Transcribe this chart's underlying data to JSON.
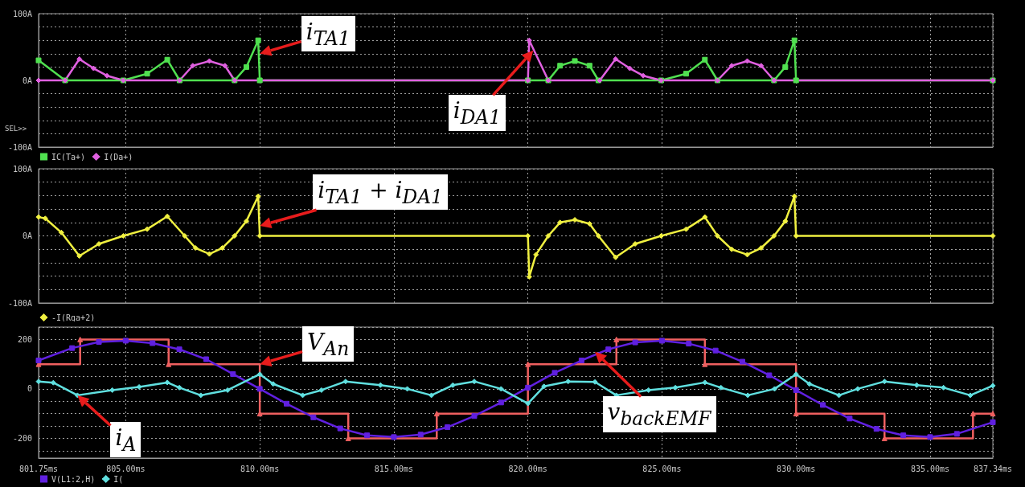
{
  "chart_data": [
    {
      "type": "line",
      "xlim": [
        801.75,
        837.34
      ],
      "ylim": [
        -100,
        100
      ],
      "xticks": [
        {
          "value": 801.75,
          "label": null
        },
        {
          "value": 805,
          "label": null
        },
        {
          "value": 810,
          "label": null
        },
        {
          "value": 815,
          "label": null
        },
        {
          "value": 820,
          "label": null
        },
        {
          "value": 825,
          "label": null
        },
        {
          "value": 830,
          "label": null
        },
        {
          "value": 835,
          "label": null
        },
        {
          "value": 837.34,
          "label": null
        }
      ],
      "yticks": [
        {
          "value": -100,
          "label": "-100A"
        },
        {
          "value": -80,
          "label": null
        },
        {
          "value": -60,
          "label": null
        },
        {
          "value": -40,
          "label": null
        },
        {
          "value": -20,
          "label": null
        },
        {
          "value": 0,
          "label": "0A"
        },
        {
          "value": 20,
          "label": null
        },
        {
          "value": 40,
          "label": null
        },
        {
          "value": 60,
          "label": null
        },
        {
          "value": 80,
          "label": null
        },
        {
          "value": 100,
          "label": "100A"
        }
      ],
      "tick_labels": "y",
      "grid": true,
      "legend": "bottom left",
      "series": [
        {
          "name": "IC(Ta+)",
          "color": "#50e050",
          "marker": "square",
          "x": [
            801.75,
            802.74,
            804.91,
            805.8,
            806.55,
            807.01,
            809.06,
            809.5,
            809.94,
            810.0,
            820.0,
            820.76,
            821.2,
            821.75,
            822.3,
            822.63,
            824.97,
            825.9,
            826.6,
            827.07,
            829.18,
            829.6,
            829.94,
            830.0,
            837.34
          ],
          "values": [
            30,
            0,
            0,
            10,
            31,
            0,
            0,
            20,
            60,
            0,
            0,
            0,
            22,
            29,
            22,
            0,
            0,
            10,
            31,
            0,
            0,
            20,
            60,
            0,
            0
          ]
        },
        {
          "name": "I(Da+)",
          "color": "#e060e0",
          "marker": "diamond",
          "x": [
            801.75,
            802.74,
            803.27,
            803.8,
            804.3,
            804.91,
            807.01,
            807.5,
            808.12,
            808.7,
            809.06,
            820.0,
            820.05,
            820.76,
            822.68,
            823.27,
            823.8,
            824.3,
            824.97,
            827.07,
            827.6,
            828.18,
            828.7,
            829.18,
            837.34
          ],
          "values": [
            0,
            0,
            32,
            18,
            7,
            0,
            0,
            22,
            29,
            22,
            0,
            0,
            60,
            0,
            0,
            32,
            18,
            7,
            0,
            0,
            22,
            29,
            22,
            0,
            0
          ]
        }
      ],
      "annotations": [
        {
          "text": "i$_{TA1}$",
          "x": 810,
          "y": 40
        },
        {
          "text": "i$_{DA1}$",
          "x": 820.2,
          "y": 45
        },
        "SEL>>"
      ]
    },
    {
      "type": "line",
      "xlim": [
        801.75,
        837.34
      ],
      "ylim": [
        -100,
        100
      ],
      "xticks": [
        {
          "value": 801.75,
          "label": null
        },
        {
          "value": 805,
          "label": null
        },
        {
          "value": 810,
          "label": null
        },
        {
          "value": 815,
          "label": null
        },
        {
          "value": 820,
          "label": null
        },
        {
          "value": 825,
          "label": null
        },
        {
          "value": 830,
          "label": null
        },
        {
          "value": 835,
          "label": null
        },
        {
          "value": 837.34,
          "label": null
        }
      ],
      "yticks": [
        {
          "value": -100,
          "label": "-100A"
        },
        {
          "value": -80,
          "label": null
        },
        {
          "value": -60,
          "label": null
        },
        {
          "value": -40,
          "label": null
        },
        {
          "value": -20,
          "label": null
        },
        {
          "value": 0,
          "label": "0A"
        },
        {
          "value": 20,
          "label": null
        },
        {
          "value": 40,
          "label": null
        },
        {
          "value": 60,
          "label": null
        },
        {
          "value": 80,
          "label": null
        },
        {
          "value": 100,
          "label": "100A"
        }
      ],
      "tick_labels": "y",
      "grid": true,
      "legend": "bottom left",
      "series": [
        {
          "name": "-I(Rga+2)",
          "color": "#f0f040",
          "marker": "diamond",
          "x": [
            801.75,
            802.0,
            802.6,
            803.27,
            804.0,
            804.91,
            805.8,
            806.55,
            807.2,
            807.6,
            808.12,
            808.6,
            809.06,
            809.5,
            809.94,
            810.0,
            820.0,
            820.05,
            820.3,
            820.76,
            821.2,
            821.75,
            822.3,
            822.63,
            823.27,
            824.0,
            824.97,
            825.9,
            826.6,
            827.07,
            827.6,
            828.18,
            828.7,
            829.18,
            829.6,
            829.94,
            830.0,
            837.34
          ],
          "values": [
            28,
            26,
            5,
            -30,
            -12,
            0,
            10,
            29,
            0,
            -18,
            -27,
            -18,
            0,
            22,
            59,
            0,
            0,
            -61,
            -28,
            0,
            20,
            24,
            18,
            0,
            -32,
            -12,
            0,
            10,
            28,
            0,
            -20,
            -28,
            -18,
            0,
            22,
            59,
            0,
            0
          ]
        }
      ],
      "annotations": [
        {
          "text": "i$_{TA1}$ + i$_{DA1}$",
          "x": 810,
          "y": 15
        }
      ]
    },
    {
      "type": "line",
      "xlim": [
        801.75,
        837.34
      ],
      "ylim": [
        -280,
        250
      ],
      "xticks": [
        {
          "value": 801.75,
          "label": "801.75ms"
        },
        {
          "value": 805,
          "label": "805.00ms"
        },
        {
          "value": 810,
          "label": "810.00ms"
        },
        {
          "value": 815,
          "label": "815.00ms"
        },
        {
          "value": 820,
          "label": "820.00ms"
        },
        {
          "value": 825,
          "label": "825.00ms"
        },
        {
          "value": 830,
          "label": "830.00ms"
        },
        {
          "value": 835,
          "label": "835.00ms"
        },
        {
          "value": 837.34,
          "label": "837.34ms"
        }
      ],
      "yticks": [
        {
          "value": -250,
          "label": null
        },
        -200,
        {
          "value": -150,
          "label": null
        },
        {
          "value": -100,
          "label": null
        },
        {
          "value": -50,
          "label": null
        },
        0,
        {
          "value": 50,
          "label": null
        },
        {
          "value": 100,
          "label": null
        },
        {
          "value": 150,
          "label": null
        },
        200,
        {
          "value": 250,
          "label": null
        }
      ],
      "grid": true,
      "legend": "bottom left",
      "series": [
        {
          "type": "step",
          "color": "#f06060",
          "marker": "triangle",
          "x": [
            801.75,
            803.3,
            806.6,
            810.0,
            813.3,
            816.6,
            820.0,
            823.3,
            826.6,
            830.0,
            833.3,
            836.6,
            837.34
          ],
          "values": [
            100,
            200,
            100,
            -100,
            -200,
            -100,
            100,
            200,
            100,
            -100,
            -200,
            -100,
            -100
          ]
        },
        {
          "name": "V(L1:2,H)",
          "color": "#6020e0",
          "marker": "square",
          "x": [
            801.75,
            803,
            804,
            805,
            806,
            807,
            808,
            809,
            810,
            811,
            812,
            813,
            814,
            815,
            816,
            817,
            818,
            819,
            820,
            821,
            822,
            823,
            824,
            825,
            826,
            827,
            828,
            829,
            830,
            831,
            832,
            833,
            834,
            835,
            836,
            837.34
          ],
          "values": [
            115,
            165,
            190,
            195,
            185,
            160,
            120,
            60,
            0,
            -60,
            -115,
            -160,
            -188,
            -195,
            -185,
            -155,
            -110,
            -55,
            5,
            65,
            115,
            160,
            188,
            195,
            183,
            155,
            110,
            55,
            -5,
            -65,
            -120,
            -162,
            -188,
            -195,
            -182,
            -135
          ]
        },
        {
          "name": "I(",
          "color": "#60e0e0",
          "marker": "diamond",
          "x": [
            801.75,
            802.3,
            803.2,
            804.5,
            805.5,
            806.55,
            807.0,
            807.8,
            808.8,
            810.0,
            810.5,
            811.6,
            812.3,
            813.2,
            814.5,
            815.5,
            816.4,
            817.2,
            818.0,
            819.0,
            820.0,
            820.6,
            821.5,
            822.5,
            823.3,
            824.5,
            825.5,
            826.6,
            827.2,
            828.2,
            829.2,
            830.0,
            830.5,
            831.6,
            832.3,
            833.3,
            834.5,
            835.5,
            836.5,
            837.34
          ],
          "values": [
            30,
            25,
            -26,
            -5,
            8,
            26,
            5,
            -26,
            -5,
            59,
            20,
            -26,
            -5,
            30,
            15,
            0,
            -26,
            15,
            30,
            0,
            -59,
            10,
            30,
            28,
            -26,
            -5,
            5,
            26,
            5,
            -26,
            0,
            59,
            20,
            -26,
            0,
            30,
            15,
            5,
            -26,
            13
          ]
        }
      ],
      "annotations": [
        {
          "text": "V$_{An}$",
          "x": 810,
          "y": 100
        },
        {
          "text": "v$_{backEMF}$",
          "x": 822.5,
          "y": 150
        },
        {
          "text": "i$_{A}$",
          "x": 803.2,
          "y": -26
        }
      ]
    }
  ]
}
